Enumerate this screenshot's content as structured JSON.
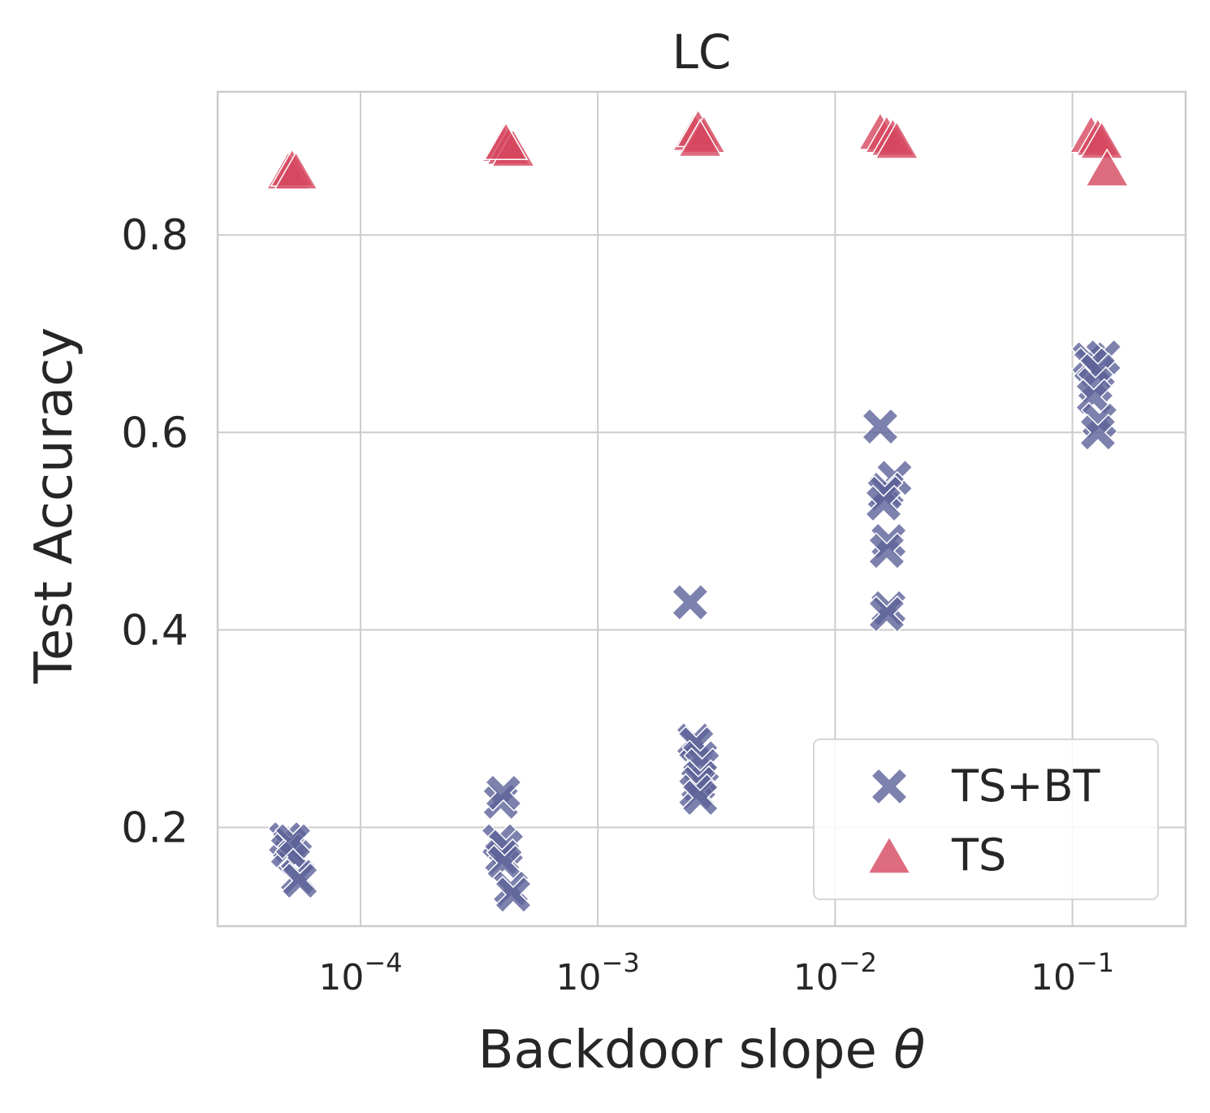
{
  "chart_data": {
    "type": "scatter",
    "title": "LC",
    "xlabel": "Backdoor slope",
    "xlabel_symbol": "θ",
    "ylabel": "Test Accuracy",
    "xscale": "log",
    "xlim": [
      2.5e-05,
      0.3
    ],
    "ylim": [
      0.1,
      0.945
    ],
    "grid": true,
    "x_ticks": [
      {
        "value": 0.0001,
        "base": "10",
        "exp": "−4"
      },
      {
        "value": 0.001,
        "base": "10",
        "exp": "−3"
      },
      {
        "value": 0.01,
        "base": "10",
        "exp": "−2"
      },
      {
        "value": 0.1,
        "base": "10",
        "exp": "−1"
      }
    ],
    "y_ticks": [
      {
        "value": 0.2,
        "label": "0.2"
      },
      {
        "value": 0.4,
        "label": "0.4"
      },
      {
        "value": 0.6,
        "label": "0.6"
      },
      {
        "value": 0.8,
        "label": "0.8"
      }
    ],
    "legend_position": "bottom-right",
    "series": [
      {
        "name": "TS+BT",
        "marker": "X",
        "color": "#5c6199",
        "points": [
          [
            4.85e-05,
            0.188
          ],
          [
            5.05e-05,
            0.182
          ],
          [
            4.95e-05,
            0.176
          ],
          [
            5.3e-05,
            0.17
          ],
          [
            5.45e-05,
            0.15
          ],
          [
            5.55e-05,
            0.146
          ],
          [
            5.2e-05,
            0.186
          ],
          [
            0.00039,
            0.226
          ],
          [
            0.0004,
            0.235
          ],
          [
            0.000385,
            0.186
          ],
          [
            0.00041,
            0.18
          ],
          [
            0.000395,
            0.17
          ],
          [
            0.000405,
            0.164
          ],
          [
            0.00043,
            0.138
          ],
          [
            0.00044,
            0.132
          ],
          [
            0.00245,
            0.428
          ],
          [
            0.00255,
            0.288
          ],
          [
            0.0026,
            0.284
          ],
          [
            0.0027,
            0.27
          ],
          [
            0.00275,
            0.262
          ],
          [
            0.0027,
            0.25
          ],
          [
            0.00265,
            0.244
          ],
          [
            0.0026,
            0.236
          ],
          [
            0.0027,
            0.23
          ],
          [
            0.0155,
            0.606
          ],
          [
            0.0178,
            0.554
          ],
          [
            0.0165,
            0.542
          ],
          [
            0.0162,
            0.538
          ],
          [
            0.016,
            0.528
          ],
          [
            0.0168,
            0.49
          ],
          [
            0.0165,
            0.48
          ],
          [
            0.0168,
            0.422
          ],
          [
            0.0165,
            0.416
          ],
          [
            0.118,
            0.674
          ],
          [
            0.135,
            0.676
          ],
          [
            0.12,
            0.668
          ],
          [
            0.128,
            0.662
          ],
          [
            0.125,
            0.648
          ],
          [
            0.123,
            0.636
          ],
          [
            0.13,
            0.612
          ],
          [
            0.128,
            0.6
          ]
        ]
      },
      {
        "name": "TS",
        "marker": "triangle",
        "color": "#d6475f",
        "points": [
          [
            4.95e-05,
            0.863
          ],
          [
            5.15e-05,
            0.866
          ],
          [
            5.35e-05,
            0.863
          ],
          [
            0.0004,
            0.891
          ],
          [
            0.00042,
            0.888
          ],
          [
            0.00044,
            0.886
          ],
          [
            0.00041,
            0.893
          ],
          [
            0.00255,
            0.902
          ],
          [
            0.00265,
            0.906
          ],
          [
            0.0028,
            0.9
          ],
          [
            0.0027,
            0.896
          ],
          [
            0.0155,
            0.903
          ],
          [
            0.0165,
            0.9
          ],
          [
            0.0175,
            0.897
          ],
          [
            0.0182,
            0.894
          ],
          [
            0.12,
            0.9
          ],
          [
            0.128,
            0.897
          ],
          [
            0.133,
            0.894
          ],
          [
            0.14,
            0.866
          ]
        ]
      }
    ]
  }
}
